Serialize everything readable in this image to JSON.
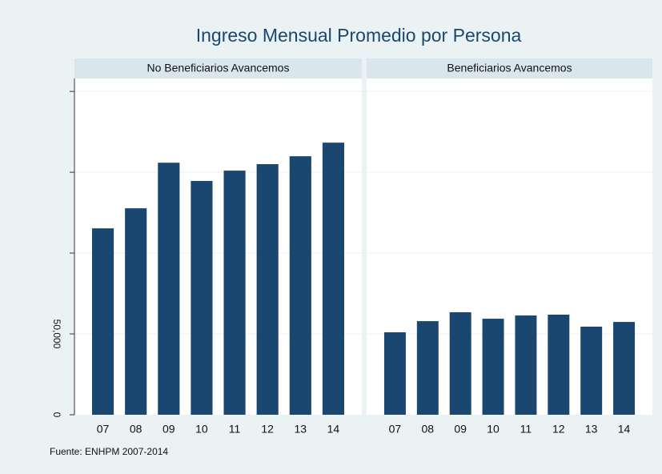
{
  "chart_data": {
    "type": "bar",
    "title": "Ingreso Mensual Promedio por Persona",
    "note": "Fuente: ENHPM 2007-2014",
    "categories": [
      "07",
      "08",
      "09",
      "10",
      "11",
      "12",
      "13",
      "14"
    ],
    "panels": [
      {
        "title": "No Beneficiarios Avancemos",
        "values": [
          115300,
          127700,
          155900,
          144600,
          151000,
          155000,
          159900,
          168300
        ]
      },
      {
        "title": "Beneficiarios Avancemos",
        "values": [
          51000,
          57900,
          63400,
          59400,
          61400,
          61900,
          54500,
          57400
        ]
      }
    ],
    "color": "#1a476f",
    "ylim": [
      0,
      208000
    ],
    "yticks": [
      0,
      {
        "value": 50000,
        "label": "50,000"
      },
      {
        "value": 100000,
        "label": null
      },
      {
        "value": 150000,
        "label": null
      },
      {
        "value": 200000,
        "label": null
      }
    ],
    "grid": true
  }
}
